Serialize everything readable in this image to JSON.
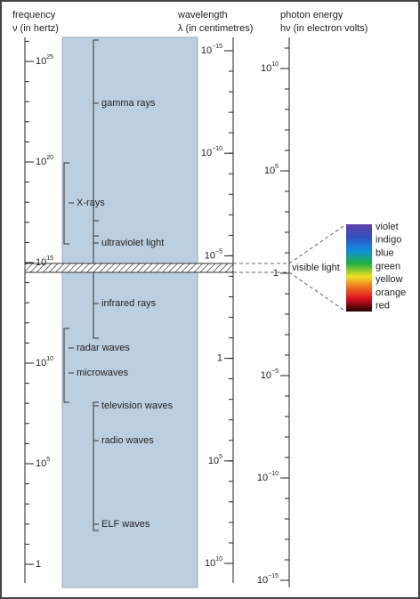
{
  "headers": [
    {
      "title": "frequency",
      "unit": "ν (in hertz)"
    },
    {
      "title": "wavelength",
      "unit": "λ (in centimetres)"
    },
    {
      "title": "photon energy",
      "unit": "hν (in electron volts)"
    }
  ],
  "scales": [
    {
      "labels": [
        {
          "base": "10",
          "exponent": "25"
        },
        {
          "base": "10",
          "exponent": "20"
        },
        {
          "base": "10",
          "exponent": "15"
        },
        {
          "base": "10",
          "exponent": "10"
        },
        {
          "base": "10",
          "exponent": "5"
        },
        {
          "base": "1"
        }
      ]
    },
    {
      "labels": [
        {
          "base": "10",
          "exponent": "−15"
        },
        {
          "base": "10",
          "exponent": "−10"
        },
        {
          "base": "10",
          "exponent": "−5"
        },
        {
          "base": "1"
        },
        {
          "base": "10",
          "exponent": "5"
        },
        {
          "base": "10",
          "exponent": "10"
        }
      ]
    },
    {
      "labels": [
        {
          "base": "10",
          "exponent": "10"
        },
        {
          "base": "10",
          "exponent": "5"
        },
        {
          "base": "1"
        },
        {
          "base": "10",
          "exponent": "−5"
        },
        {
          "base": "10",
          "exponent": "−10"
        },
        {
          "base": "10",
          "exponent": "−15"
        }
      ]
    }
  ],
  "bands": [
    "gamma rays",
    "X-rays",
    "ultraviolet light",
    "infrared rays",
    "radar waves",
    "microwaves",
    "television waves",
    "radio waves",
    "ELF waves"
  ],
  "visible": {
    "label": "visible light",
    "colors": [
      "violet",
      "indigo",
      "blue",
      "green",
      "yellow",
      "orange",
      "red"
    ]
  }
}
